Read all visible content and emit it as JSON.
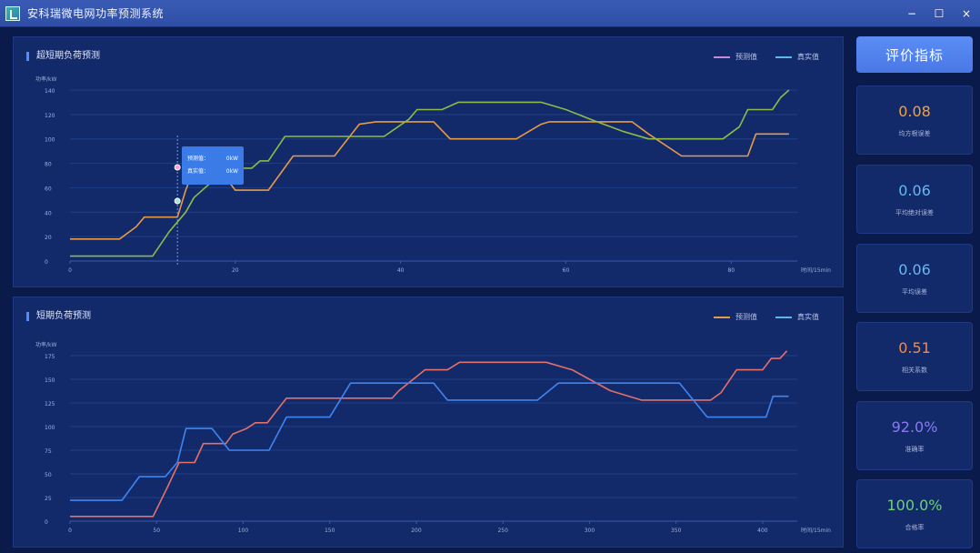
{
  "window": {
    "title": "安科瑞微电网功率预测系统",
    "minimize": "−",
    "maximize": "☐",
    "close": "×"
  },
  "colors": {
    "panel_bg": "#132a6a",
    "page_bg": "#0a1a4a",
    "accent": "#4f8cff",
    "chart1_pred": "#e79a45",
    "chart1_actual": "#8dbb4a",
    "chart2_pred": "#e4706a",
    "chart2_actual": "#3f85f0"
  },
  "sidebar": {
    "eval_button": "评价指标",
    "metrics": [
      {
        "value": "0.08",
        "label": "均方根误差",
        "color": "#f2a23a"
      },
      {
        "value": "0.06",
        "label": "平均绝对误差",
        "color": "#66b8f0"
      },
      {
        "value": "0.06",
        "label": "平均误差",
        "color": "#66b8f0"
      },
      {
        "value": "0.51",
        "label": "相关系数",
        "color": "#f08a48"
      },
      {
        "value": "92.0%",
        "label": "准确率",
        "color": "#8a7af0"
      },
      {
        "value": "100.0%",
        "label": "合格率",
        "color": "#6ed07a"
      }
    ]
  },
  "tooltip": {
    "pred_label": "预测值：",
    "pred_value": "0kW",
    "actual_label": "真实值：",
    "actual_value": "0kW"
  },
  "chart_data": [
    {
      "type": "line",
      "title": "超短期负荷预测",
      "ylabel": "功率/kW",
      "xlabel": "时间/15min",
      "ylim": [
        0,
        140
      ],
      "yticks": [
        0,
        20,
        40,
        60,
        80,
        100,
        120,
        140
      ],
      "xlim": [
        0,
        88
      ],
      "xticks": [
        0,
        20,
        40,
        60,
        80
      ],
      "grid": true,
      "legend_position": "top-right",
      "series": [
        {
          "name": "预测值",
          "color": "#e79a45",
          "points": [
            [
              0,
              18
            ],
            [
              6,
              18
            ],
            [
              8,
              28
            ],
            [
              9,
              36
            ],
            [
              13,
              36
            ],
            [
              14,
              58
            ],
            [
              15,
              76
            ],
            [
              18,
              76
            ],
            [
              20,
              58
            ],
            [
              24,
              58
            ],
            [
              27,
              86
            ],
            [
              32,
              86
            ],
            [
              35,
              112
            ],
            [
              37,
              114
            ],
            [
              44,
              114
            ],
            [
              46,
              100
            ],
            [
              54,
              100
            ],
            [
              57,
              112
            ],
            [
              58,
              114
            ],
            [
              68,
              114
            ],
            [
              70,
              104
            ],
            [
              74,
              86
            ],
            [
              82,
              86
            ],
            [
              83,
              104
            ],
            [
              87,
              104
            ]
          ]
        },
        {
          "name": "真实值",
          "color": "#8dbb4a",
          "points": [
            [
              0,
              4
            ],
            [
              10,
              4
            ],
            [
              12,
              24
            ],
            [
              14,
              40
            ],
            [
              15,
              52
            ],
            [
              17,
              64
            ],
            [
              18,
              68
            ],
            [
              19,
              66
            ],
            [
              20,
              76
            ],
            [
              22,
              76
            ],
            [
              23,
              82
            ],
            [
              24,
              82
            ],
            [
              26,
              102
            ],
            [
              38,
              102
            ],
            [
              41,
              116
            ],
            [
              42,
              124
            ],
            [
              45,
              124
            ],
            [
              47,
              130
            ],
            [
              57,
              130
            ],
            [
              60,
              124
            ],
            [
              63,
              116
            ],
            [
              67,
              106
            ],
            [
              70,
              100
            ],
            [
              79,
              100
            ],
            [
              81,
              110
            ],
            [
              82,
              124
            ],
            [
              85,
              124
            ],
            [
              86,
              134
            ],
            [
              87,
              140
            ]
          ]
        }
      ]
    },
    {
      "type": "line",
      "title": "短期负荷预测",
      "ylabel": "功率/kW",
      "xlabel": "时间/15min",
      "ylim": [
        0,
        175
      ],
      "yticks": [
        0,
        25,
        50,
        75,
        100,
        125,
        150,
        175
      ],
      "xlim": [
        0,
        420
      ],
      "xticks": [
        0,
        50,
        100,
        150,
        200,
        250,
        300,
        350,
        400
      ],
      "grid": true,
      "legend_position": "top-right",
      "series": [
        {
          "name": "预测值",
          "color": "#e4706a",
          "points": [
            [
              0,
              5
            ],
            [
              30,
              5
            ],
            [
              48,
              5
            ],
            [
              56,
              35
            ],
            [
              63,
              62
            ],
            [
              72,
              62
            ],
            [
              77,
              82
            ],
            [
              90,
              82
            ],
            [
              94,
              92
            ],
            [
              102,
              98
            ],
            [
              107,
              104
            ],
            [
              114,
              104
            ],
            [
              125,
              130
            ],
            [
              186,
              130
            ],
            [
              190,
              138
            ],
            [
              205,
              160
            ],
            [
              218,
              160
            ],
            [
              225,
              168
            ],
            [
              275,
              168
            ],
            [
              290,
              160
            ],
            [
              312,
              138
            ],
            [
              330,
              128
            ],
            [
              370,
              128
            ],
            [
              376,
              136
            ],
            [
              385,
              160
            ],
            [
              400,
              160
            ],
            [
              405,
              172
            ],
            [
              410,
              172
            ],
            [
              414,
              180
            ]
          ]
        },
        {
          "name": "真实值",
          "color": "#3f85f0",
          "points": [
            [
              0,
              22
            ],
            [
              30,
              22
            ],
            [
              40,
              47
            ],
            [
              55,
              47
            ],
            [
              62,
              62
            ],
            [
              67,
              98
            ],
            [
              82,
              98
            ],
            [
              92,
              75
            ],
            [
              115,
              75
            ],
            [
              125,
              110
            ],
            [
              150,
              110
            ],
            [
              162,
              146
            ],
            [
              210,
              146
            ],
            [
              218,
              128
            ],
            [
              270,
              128
            ],
            [
              282,
              146
            ],
            [
              320,
              146
            ],
            [
              352,
              146
            ],
            [
              368,
              110
            ],
            [
              402,
              110
            ],
            [
              406,
              132
            ],
            [
              415,
              132
            ]
          ]
        }
      ]
    }
  ]
}
